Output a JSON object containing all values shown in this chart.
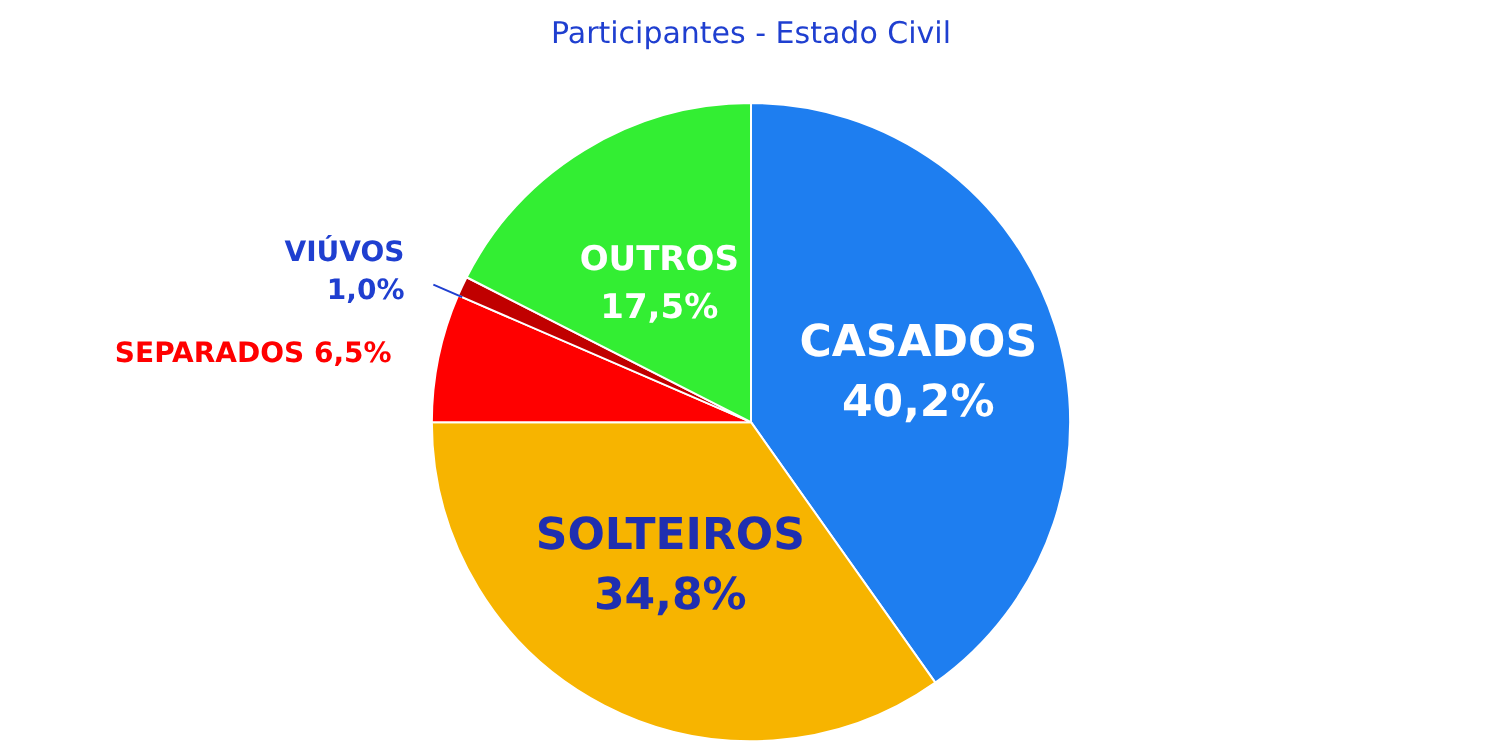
{
  "chart_data": {
    "type": "pie",
    "title": "Participantes - Estado Civil",
    "categories": [
      "CASADOS",
      "SOLTEIROS",
      "SEPARADOS",
      "VIÚVOS",
      "OUTROS"
    ],
    "values": [
      40.2,
      34.8,
      6.5,
      1.0,
      17.5
    ],
    "colors": [
      "#1e7ef0",
      "#f7b400",
      "#ff0000",
      "#c00000",
      "#33ee33"
    ],
    "value_labels": [
      "40,2%",
      "34,8%",
      "6,5%",
      "1,0%",
      "17,5%"
    ],
    "legend": false
  }
}
